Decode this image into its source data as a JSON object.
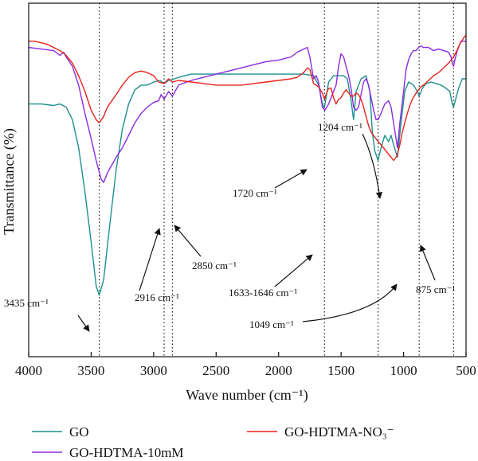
{
  "chart_data": {
    "type": "line",
    "title": "",
    "xlabel": "Wave number (cm⁻¹)",
    "ylabel": "Transmittance (%)",
    "xlim": [
      4000,
      500
    ],
    "x_reversed": true,
    "y_ticks_shown": false,
    "x_ticks": [
      4000,
      3500,
      3000,
      2500,
      2000,
      1500,
      1000,
      500
    ],
    "x_tick_labels": [
      "4000",
      "3500",
      "3000",
      "2500",
      "2000",
      "1500",
      "1000",
      "500"
    ],
    "reference_lines": [
      3435,
      2916,
      2850,
      1633,
      1204,
      875,
      600
    ],
    "legend_position": "below",
    "series": [
      {
        "name": "GO",
        "color": "#1f8f8f",
        "points": [
          [
            4000,
            0.24
          ],
          [
            3900,
            0.24
          ],
          [
            3800,
            0.245
          ],
          [
            3750,
            0.24
          ],
          [
            3700,
            0.25
          ],
          [
            3650,
            0.29
          ],
          [
            3600,
            0.38
          ],
          [
            3550,
            0.52
          ],
          [
            3500,
            0.68
          ],
          [
            3460,
            0.82
          ],
          [
            3435,
            0.85
          ],
          [
            3400,
            0.8
          ],
          [
            3350,
            0.62
          ],
          [
            3300,
            0.45
          ],
          [
            3250,
            0.32
          ],
          [
            3200,
            0.24
          ],
          [
            3150,
            0.195
          ],
          [
            3100,
            0.18
          ],
          [
            3050,
            0.18
          ],
          [
            3000,
            0.17
          ],
          [
            2950,
            0.165
          ],
          [
            2916,
            0.175
          ],
          [
            2880,
            0.165
          ],
          [
            2850,
            0.162
          ],
          [
            2800,
            0.155
          ],
          [
            2700,
            0.145
          ],
          [
            2500,
            0.145
          ],
          [
            2200,
            0.145
          ],
          [
            2000,
            0.145
          ],
          [
            1900,
            0.145
          ],
          [
            1800,
            0.145
          ],
          [
            1720,
            0.15
          ],
          [
            1680,
            0.18
          ],
          [
            1646,
            0.245
          ],
          [
            1633,
            0.25
          ],
          [
            1600,
            0.17
          ],
          [
            1560,
            0.15
          ],
          [
            1520,
            0.15
          ],
          [
            1480,
            0.15
          ],
          [
            1450,
            0.16
          ],
          [
            1420,
            0.23
          ],
          [
            1400,
            0.29
          ],
          [
            1380,
            0.2
          ],
          [
            1340,
            0.16
          ],
          [
            1300,
            0.15
          ],
          [
            1270,
            0.2
          ],
          [
            1250,
            0.33
          ],
          [
            1230,
            0.39
          ],
          [
            1204,
            0.42
          ],
          [
            1180,
            0.38
          ],
          [
            1150,
            0.34
          ],
          [
            1120,
            0.36
          ],
          [
            1100,
            0.34
          ],
          [
            1080,
            0.37
          ],
          [
            1049,
            0.41
          ],
          [
            1020,
            0.3
          ],
          [
            990,
            0.2
          ],
          [
            960,
            0.17
          ],
          [
            920,
            0.18
          ],
          [
            890,
            0.2
          ],
          [
            875,
            0.215
          ],
          [
            850,
            0.19
          ],
          [
            820,
            0.175
          ],
          [
            780,
            0.17
          ],
          [
            740,
            0.175
          ],
          [
            700,
            0.18
          ],
          [
            660,
            0.19
          ],
          [
            630,
            0.2
          ],
          [
            610,
            0.24
          ],
          [
            600,
            0.25
          ],
          [
            580,
            0.22
          ],
          [
            560,
            0.19
          ],
          [
            530,
            0.16
          ],
          [
            500,
            0.16
          ]
        ]
      },
      {
        "name": "GO-HDTMA-10mM",
        "color": "#8b2be2",
        "points": [
          [
            4000,
            0.06
          ],
          [
            3900,
            0.065
          ],
          [
            3800,
            0.07
          ],
          [
            3750,
            0.085
          ],
          [
            3720,
            0.075
          ],
          [
            3700,
            0.09
          ],
          [
            3650,
            0.12
          ],
          [
            3600,
            0.18
          ],
          [
            3550,
            0.27
          ],
          [
            3500,
            0.35
          ],
          [
            3460,
            0.42
          ],
          [
            3420,
            0.48
          ],
          [
            3400,
            0.49
          ],
          [
            3370,
            0.46
          ],
          [
            3300,
            0.41
          ],
          [
            3250,
            0.38
          ],
          [
            3200,
            0.34
          ],
          [
            3150,
            0.3
          ],
          [
            3100,
            0.27
          ],
          [
            3050,
            0.25
          ],
          [
            3000,
            0.235
          ],
          [
            2960,
            0.23
          ],
          [
            2940,
            0.21
          ],
          [
            2916,
            0.225
          ],
          [
            2880,
            0.2
          ],
          [
            2850,
            0.215
          ],
          [
            2800,
            0.18
          ],
          [
            2700,
            0.165
          ],
          [
            2600,
            0.155
          ],
          [
            2500,
            0.145
          ],
          [
            2400,
            0.135
          ],
          [
            2300,
            0.125
          ],
          [
            2200,
            0.115
          ],
          [
            2100,
            0.105
          ],
          [
            2000,
            0.1
          ],
          [
            1900,
            0.09
          ],
          [
            1850,
            0.075
          ],
          [
            1800,
            0.065
          ],
          [
            1770,
            0.06
          ],
          [
            1750,
            0.09
          ],
          [
            1720,
            0.16
          ],
          [
            1700,
            0.15
          ],
          [
            1680,
            0.17
          ],
          [
            1650,
            0.25
          ],
          [
            1630,
            0.26
          ],
          [
            1600,
            0.24
          ],
          [
            1580,
            0.22
          ],
          [
            1560,
            0.2
          ],
          [
            1540,
            0.18
          ],
          [
            1520,
            0.12
          ],
          [
            1500,
            0.08
          ],
          [
            1480,
            0.09
          ],
          [
            1460,
            0.12
          ],
          [
            1440,
            0.15
          ],
          [
            1420,
            0.19
          ],
          [
            1400,
            0.25
          ],
          [
            1380,
            0.26
          ],
          [
            1360,
            0.25
          ],
          [
            1340,
            0.21
          ],
          [
            1320,
            0.17
          ],
          [
            1300,
            0.16
          ],
          [
            1280,
            0.18
          ],
          [
            1260,
            0.22
          ],
          [
            1240,
            0.26
          ],
          [
            1220,
            0.29
          ],
          [
            1204,
            0.29
          ],
          [
            1180,
            0.27
          ],
          [
            1150,
            0.24
          ],
          [
            1120,
            0.23
          ],
          [
            1100,
            0.25
          ],
          [
            1080,
            0.3
          ],
          [
            1049,
            0.38
          ],
          [
            1030,
            0.3
          ],
          [
            1000,
            0.2
          ],
          [
            980,
            0.13
          ],
          [
            960,
            0.1
          ],
          [
            940,
            0.08
          ],
          [
            920,
            0.07
          ],
          [
            900,
            0.07
          ],
          [
            880,
            0.06
          ],
          [
            860,
            0.055
          ],
          [
            840,
            0.06
          ],
          [
            800,
            0.06
          ],
          [
            760,
            0.07
          ],
          [
            720,
            0.065
          ],
          [
            680,
            0.07
          ],
          [
            640,
            0.075
          ],
          [
            620,
            0.09
          ],
          [
            610,
            0.11
          ],
          [
            600,
            0.12
          ],
          [
            590,
            0.1
          ],
          [
            570,
            0.07
          ],
          [
            540,
            0.04
          ],
          [
            500,
            0.04
          ]
        ]
      },
      {
        "name": "GO-HDTMA-NO₃⁻",
        "color": "#e8221a",
        "points": [
          [
            4000,
            0.04
          ],
          [
            3950,
            0.04
          ],
          [
            3900,
            0.045
          ],
          [
            3850,
            0.05
          ],
          [
            3800,
            0.06
          ],
          [
            3750,
            0.07
          ],
          [
            3700,
            0.085
          ],
          [
            3650,
            0.11
          ],
          [
            3600,
            0.15
          ],
          [
            3550,
            0.2
          ],
          [
            3500,
            0.26
          ],
          [
            3460,
            0.29
          ],
          [
            3435,
            0.3
          ],
          [
            3400,
            0.28
          ],
          [
            3370,
            0.25
          ],
          [
            3300,
            0.21
          ],
          [
            3250,
            0.18
          ],
          [
            3200,
            0.155
          ],
          [
            3150,
            0.14
          ],
          [
            3100,
            0.135
          ],
          [
            3050,
            0.14
          ],
          [
            3000,
            0.15
          ],
          [
            2960,
            0.17
          ],
          [
            2916,
            0.175
          ],
          [
            2880,
            0.16
          ],
          [
            2850,
            0.17
          ],
          [
            2800,
            0.165
          ],
          [
            2700,
            0.17
          ],
          [
            2600,
            0.175
          ],
          [
            2500,
            0.18
          ],
          [
            2400,
            0.18
          ],
          [
            2300,
            0.18
          ],
          [
            2200,
            0.175
          ],
          [
            2100,
            0.17
          ],
          [
            2000,
            0.165
          ],
          [
            1900,
            0.16
          ],
          [
            1850,
            0.155
          ],
          [
            1800,
            0.14
          ],
          [
            1770,
            0.125
          ],
          [
            1750,
            0.13
          ],
          [
            1720,
            0.175
          ],
          [
            1700,
            0.18
          ],
          [
            1680,
            0.185
          ],
          [
            1650,
            0.205
          ],
          [
            1633,
            0.225
          ],
          [
            1620,
            0.21
          ],
          [
            1600,
            0.19
          ],
          [
            1580,
            0.19
          ],
          [
            1560,
            0.22
          ],
          [
            1540,
            0.24
          ],
          [
            1520,
            0.225
          ],
          [
            1500,
            0.22
          ],
          [
            1480,
            0.205
          ],
          [
            1460,
            0.195
          ],
          [
            1440,
            0.205
          ],
          [
            1420,
            0.215
          ],
          [
            1400,
            0.215
          ],
          [
            1380,
            0.205
          ],
          [
            1360,
            0.21
          ],
          [
            1340,
            0.225
          ],
          [
            1320,
            0.25
          ],
          [
            1300,
            0.28
          ],
          [
            1280,
            0.31
          ],
          [
            1260,
            0.33
          ],
          [
            1240,
            0.34
          ],
          [
            1204,
            0.36
          ],
          [
            1180,
            0.37
          ],
          [
            1160,
            0.38
          ],
          [
            1140,
            0.39
          ],
          [
            1120,
            0.4
          ],
          [
            1100,
            0.41
          ],
          [
            1080,
            0.42
          ],
          [
            1060,
            0.41
          ],
          [
            1049,
            0.4
          ],
          [
            1030,
            0.37
          ],
          [
            1010,
            0.33
          ],
          [
            990,
            0.3
          ],
          [
            970,
            0.27
          ],
          [
            950,
            0.245
          ],
          [
            930,
            0.225
          ],
          [
            900,
            0.205
          ],
          [
            880,
            0.195
          ],
          [
            860,
            0.185
          ],
          [
            840,
            0.18
          ],
          [
            800,
            0.165
          ],
          [
            760,
            0.15
          ],
          [
            720,
            0.14
          ],
          [
            680,
            0.125
          ],
          [
            640,
            0.11
          ],
          [
            620,
            0.1
          ],
          [
            600,
            0.09
          ],
          [
            580,
            0.075
          ],
          [
            550,
            0.05
          ],
          [
            520,
            0.03
          ],
          [
            500,
            0.02
          ]
        ]
      }
    ],
    "annotations": [
      {
        "text": "3435 cm⁻¹"
      },
      {
        "text": "2916 cm⁻¹"
      },
      {
        "text": "2850 cm⁻¹"
      },
      {
        "text": "1720 cm⁻¹"
      },
      {
        "text": "1204 cm⁻¹"
      },
      {
        "text": "1633-1646 cm⁻¹"
      },
      {
        "text": "1049 cm⁻¹"
      },
      {
        "text": "875 cm⁻¹"
      }
    ]
  }
}
